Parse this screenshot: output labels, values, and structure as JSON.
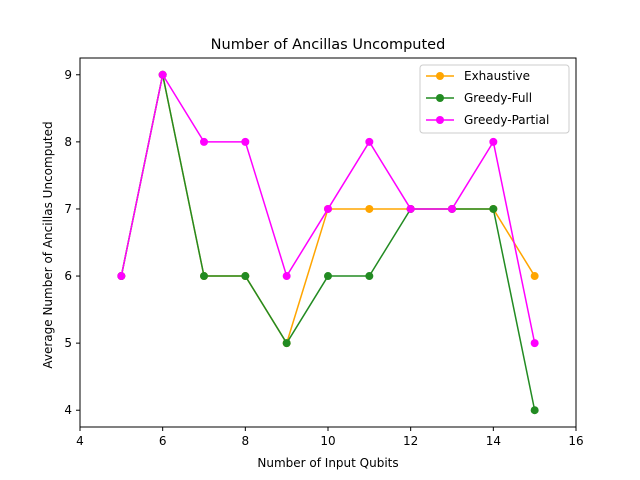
{
  "chart_data": {
    "type": "line",
    "title": "Number of Ancillas Uncomputed",
    "xlabel": "Number of Input Qubits",
    "ylabel": "Average Number of Ancillas Uncomputed",
    "xlim": [
      4,
      16
    ],
    "ylim": [
      3.75,
      9.25
    ],
    "xticks": [
      "4",
      "6",
      "8",
      "10",
      "12",
      "14",
      "16"
    ],
    "yticks": [
      "4",
      "5",
      "6",
      "7",
      "8",
      "9"
    ],
    "grid": false,
    "legend_position": "top-right",
    "x": [
      5,
      6,
      7,
      8,
      9,
      10,
      11,
      12,
      13,
      14,
      15
    ],
    "series": [
      {
        "name": "Exhaustive",
        "color": "#ffa500",
        "values": [
          6,
          9,
          6,
          6,
          5,
          7,
          7,
          7,
          7,
          7,
          6
        ]
      },
      {
        "name": "Greedy-Full",
        "color": "#228b22",
        "values": [
          6,
          9,
          6,
          6,
          5,
          6,
          6,
          7,
          7,
          7,
          4
        ]
      },
      {
        "name": "Greedy-Partial",
        "color": "#ff00ff",
        "values": [
          6,
          9,
          8,
          8,
          6,
          7,
          8,
          7,
          7,
          8,
          5
        ]
      }
    ]
  }
}
